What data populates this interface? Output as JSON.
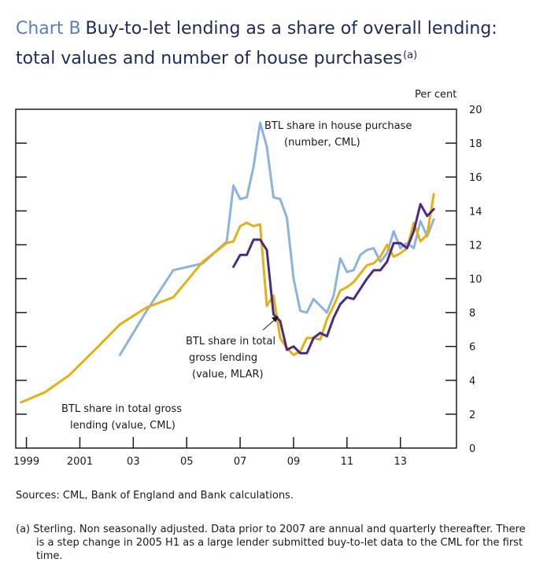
{
  "header": {
    "chart_num": "Chart B",
    "title_line1": "Buy-to-let lending as a share of overall lending:",
    "title_line2": "total values and number of house purchases",
    "title_note": "(a)"
  },
  "sources": "Sources: CML, Bank of England and Bank calculations.",
  "footnote": "(a) Sterling. Non seasonally adjusted. Data prior to 2007 are annual and quarterly thereafter. There is a step change in 2005 H1 as a large lender submitted buy-to-let data to the CML for the first time.",
  "chart_data": {
    "type": "line",
    "ylabel": "Per cent",
    "ylim": [
      0,
      20
    ],
    "yticks": [
      0,
      2,
      4,
      6,
      8,
      10,
      12,
      14,
      16,
      18,
      20
    ],
    "xlim": [
      1998.6,
      2015.1
    ],
    "xticks": [
      {
        "pos": 1999,
        "label": "1999"
      },
      {
        "pos": 2001,
        "label": "2001"
      },
      {
        "pos": 2003,
        "label": "03"
      },
      {
        "pos": 2005,
        "label": "05"
      },
      {
        "pos": 2007,
        "label": "07"
      },
      {
        "pos": 2009,
        "label": "09"
      },
      {
        "pos": 2011,
        "label": "11"
      },
      {
        "pos": 2013,
        "label": "13"
      }
    ],
    "grid": false,
    "series": [
      {
        "name": "BTL share in total gross lending (value, CML)",
        "color": "#e6b012",
        "x": [
          1998.8,
          1999.7,
          2000.6,
          2001.5,
          2002.5,
          2003.5,
          2004.5,
          2005.6,
          2006.5,
          2006.75,
          2007.0,
          2007.25,
          2007.5,
          2007.75,
          2008.0,
          2008.25,
          2008.5,
          2008.75,
          2009.0,
          2009.25,
          2009.5,
          2009.75,
          2010.0,
          2010.25,
          2010.5,
          2010.75,
          2011.0,
          2011.25,
          2011.5,
          2011.75,
          2012.0,
          2012.25,
          2012.5,
          2012.75,
          2013.0,
          2013.25,
          2013.5,
          2013.75,
          2014.0,
          2014.25,
          2014.5,
          2014.75
        ],
        "y": [
          2.7,
          3.3,
          4.3,
          5.7,
          7.3,
          8.3,
          8.9,
          11.0,
          12.1,
          12.2,
          13.1,
          13.3,
          13.1,
          13.2,
          8.4,
          9.0,
          6.5,
          5.9,
          5.5,
          5.7,
          6.5,
          6.5,
          6.4,
          7.6,
          8.4,
          9.3,
          9.5,
          9.8,
          10.3,
          10.8,
          10.9,
          11.3,
          12.0,
          11.3,
          11.5,
          11.8,
          13.3,
          12.2,
          12.6,
          15.0,
          null,
          null
        ]
      },
      {
        "name": "BTL share in total gross lending (value, MLAR)",
        "color": "#4b2b82",
        "x": [
          2006.75,
          2007.0,
          2007.25,
          2007.5,
          2007.75,
          2008.0,
          2008.25,
          2008.5,
          2008.75,
          2009.0,
          2009.25,
          2009.5,
          2009.75,
          2010.0,
          2010.25,
          2010.5,
          2010.75,
          2011.0,
          2011.25,
          2011.5,
          2011.75,
          2012.0,
          2012.25,
          2012.5,
          2012.75,
          2013.0,
          2013.25,
          2013.5,
          2013.75,
          2014.0,
          2014.25
        ],
        "y": [
          10.7,
          11.4,
          11.4,
          12.3,
          12.3,
          11.7,
          7.9,
          7.5,
          5.8,
          6.0,
          5.6,
          5.6,
          6.5,
          6.8,
          6.6,
          7.7,
          8.5,
          8.9,
          8.8,
          9.4,
          10.0,
          10.5,
          10.5,
          11.0,
          12.1,
          12.1,
          11.8,
          12.8,
          14.4,
          13.7,
          14.1
        ]
      },
      {
        "name": "BTL share in house purchase (number, CML)",
        "color": "#8cb2e0",
        "x": [
          2002.5,
          2003.5,
          2004.5,
          2005.6,
          2006.5,
          2006.75,
          2007.0,
          2007.25,
          2007.5,
          2007.75,
          2008.0,
          2008.25,
          2008.5,
          2008.75,
          2009.0,
          2009.25,
          2009.5,
          2009.75,
          2010.0,
          2010.25,
          2010.5,
          2010.75,
          2011.0,
          2011.25,
          2011.5,
          2011.75,
          2012.0,
          2012.25,
          2012.5,
          2012.75,
          2013.0,
          2013.25,
          2013.5,
          2013.75,
          2014.0,
          2014.25
        ],
        "y": [
          5.5,
          8.1,
          10.5,
          10.9,
          12.2,
          15.5,
          14.7,
          14.8,
          16.6,
          19.2,
          17.8,
          14.8,
          14.7,
          13.6,
          10.0,
          8.1,
          8.0,
          8.8,
          8.4,
          8.0,
          9.0,
          11.2,
          10.4,
          10.5,
          11.4,
          11.7,
          11.8,
          11.0,
          11.5,
          12.8,
          11.8,
          12.1,
          11.8,
          13.4,
          12.5,
          13.5
        ]
      }
    ],
    "annotations": [
      {
        "text": "BTL share in house purchase",
        "line2": "(number, CML)"
      },
      {
        "text": "BTL share in total",
        "line2": "gross lending",
        "line3": "(value, MLAR)"
      },
      {
        "text": "BTL share in total gross",
        "line2": "lending (value, CML)"
      }
    ]
  }
}
